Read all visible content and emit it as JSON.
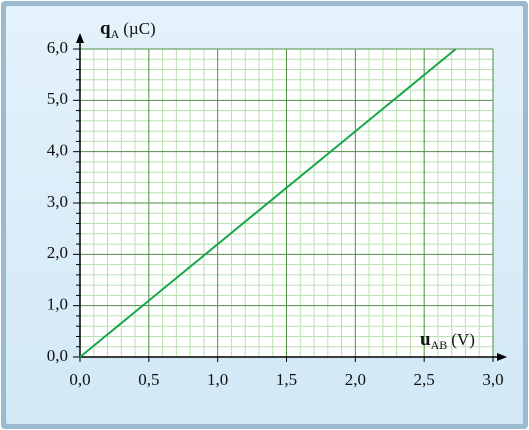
{
  "chart_data": {
    "type": "line",
    "x_label": {
      "symbol": "u",
      "subscript": "AB",
      "unit": "(V)"
    },
    "y_label": {
      "symbol": "q",
      "subscript": "A",
      "unit": "(µC)"
    },
    "x": [
      0,
      2.73
    ],
    "series": [
      {
        "color": "#1aa64a",
        "values": [
          0,
          6.0
        ]
      }
    ],
    "xlim": [
      0,
      3.0
    ],
    "ylim": [
      0,
      6.0
    ],
    "xticks": [
      {
        "value": 0,
        "label": "0,0"
      },
      {
        "value": 0.5,
        "label": "0,5"
      },
      {
        "value": 1.0,
        "label": "1,0"
      },
      {
        "value": 1.5,
        "label": "1,5"
      },
      {
        "value": 2.0,
        "label": "2,0"
      },
      {
        "value": 2.5,
        "label": "2,5"
      },
      {
        "value": 3.0,
        "label": "3,0"
      }
    ],
    "yticks": [
      {
        "value": 0,
        "label": "0,0"
      },
      {
        "value": 1.0,
        "label": "1,0"
      },
      {
        "value": 2.0,
        "label": "2,0"
      },
      {
        "value": 3.0,
        "label": "3,0"
      },
      {
        "value": 4.0,
        "label": "4,0"
      },
      {
        "value": 5.0,
        "label": "5,0"
      },
      {
        "value": 6.0,
        "label": "6,0"
      }
    ],
    "grid": true
  }
}
